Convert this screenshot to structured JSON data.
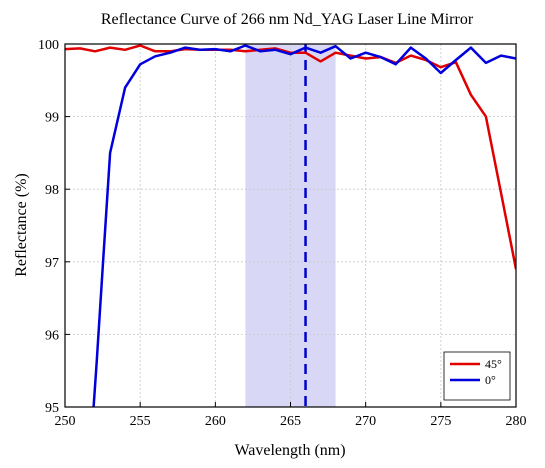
{
  "chart_data": {
    "type": "line",
    "title": "Reflectance Curve of 266 nm Nd_YAG Laser Line Mirror",
    "xlabel": "Wavelength (nm)",
    "ylabel": "Reflectance (%)",
    "xlim": [
      250,
      280
    ],
    "ylim": [
      95,
      100
    ],
    "xticks": [
      250,
      255,
      260,
      265,
      270,
      275,
      280
    ],
    "yticks": [
      95,
      96,
      97,
      98,
      99,
      100
    ],
    "highlight_band": {
      "x": [
        262,
        268
      ],
      "color": "#d8d8f6"
    },
    "marker_line": {
      "x": 266,
      "style": "dashed",
      "color": "#0000cc"
    },
    "legend_position": "bottom-right",
    "grid": "dashed",
    "series": [
      {
        "name": "45°",
        "color": "#e00000",
        "x": [
          250,
          251,
          252,
          253,
          254,
          255,
          256,
          257,
          258,
          259,
          260,
          261,
          262,
          263,
          264,
          265,
          266,
          267,
          268,
          269,
          270,
          271,
          272,
          273,
          274,
          275,
          276,
          277,
          278,
          279,
          280
        ],
        "y": [
          99.93,
          99.94,
          99.9,
          99.95,
          99.92,
          99.98,
          99.9,
          99.9,
          99.93,
          99.92,
          99.92,
          99.92,
          99.9,
          99.92,
          99.94,
          99.88,
          99.88,
          99.76,
          99.88,
          99.84,
          99.8,
          99.82,
          99.74,
          99.84,
          99.78,
          99.68,
          99.75,
          99.3,
          99.0,
          97.95,
          96.9
        ]
      },
      {
        "name": "0°",
        "color": "#0000dd",
        "x": [
          251.9,
          252.1,
          252.5,
          253,
          254,
          255,
          256,
          257,
          258,
          259,
          260,
          261,
          262,
          263,
          264,
          265,
          266,
          267,
          268,
          269,
          270,
          271,
          272,
          273,
          274,
          275,
          276,
          277,
          278,
          279,
          280
        ],
        "y": [
          95.0,
          95.6,
          96.9,
          98.5,
          99.4,
          99.72,
          99.83,
          99.88,
          99.95,
          99.92,
          99.93,
          99.9,
          99.98,
          99.9,
          99.92,
          99.86,
          99.95,
          99.88,
          99.97,
          99.8,
          99.88,
          99.82,
          99.72,
          99.95,
          99.8,
          99.6,
          99.78,
          99.95,
          99.74,
          99.84,
          99.8
        ]
      }
    ]
  }
}
